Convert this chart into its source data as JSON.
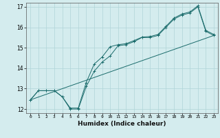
{
  "xlabel": "Humidex (Indice chaleur)",
  "ylabel": "",
  "bg_color": "#d4ecee",
  "grid_color": "#b0d4d8",
  "line_color": "#1a6b6b",
  "xlim": [
    -0.5,
    23.5
  ],
  "ylim": [
    11.8,
    17.2
  ],
  "xticks": [
    0,
    1,
    2,
    3,
    4,
    5,
    6,
    7,
    8,
    9,
    10,
    11,
    12,
    13,
    14,
    15,
    16,
    17,
    18,
    19,
    20,
    21,
    22,
    23
  ],
  "yticks": [
    12,
    13,
    14,
    15,
    16,
    17
  ],
  "series1_x": [
    0,
    1,
    2,
    3,
    4,
    5,
    6,
    7,
    8,
    9,
    10,
    11,
    12,
    13,
    14,
    15,
    16,
    17,
    18,
    19,
    20,
    21,
    22,
    23
  ],
  "series1_y": [
    12.45,
    12.9,
    12.9,
    12.9,
    12.6,
    12.0,
    12.0,
    13.1,
    13.85,
    14.3,
    14.6,
    15.1,
    15.15,
    15.3,
    15.5,
    15.5,
    15.6,
    16.0,
    16.4,
    16.6,
    16.7,
    17.0,
    15.8,
    15.6
  ],
  "series2_x": [
    0,
    23
  ],
  "series2_y": [
    12.45,
    15.6
  ],
  "series3_x": [
    0,
    1,
    2,
    3,
    4,
    5,
    6,
    7,
    8,
    9,
    10,
    11,
    12,
    13,
    14,
    15,
    16,
    17,
    18,
    19,
    20,
    21,
    22,
    23
  ],
  "series3_y": [
    12.45,
    12.9,
    12.9,
    12.9,
    12.6,
    12.05,
    12.05,
    13.3,
    14.2,
    14.55,
    15.05,
    15.15,
    15.2,
    15.35,
    15.52,
    15.55,
    15.65,
    16.05,
    16.45,
    16.65,
    16.75,
    17.05,
    15.85,
    15.65
  ]
}
